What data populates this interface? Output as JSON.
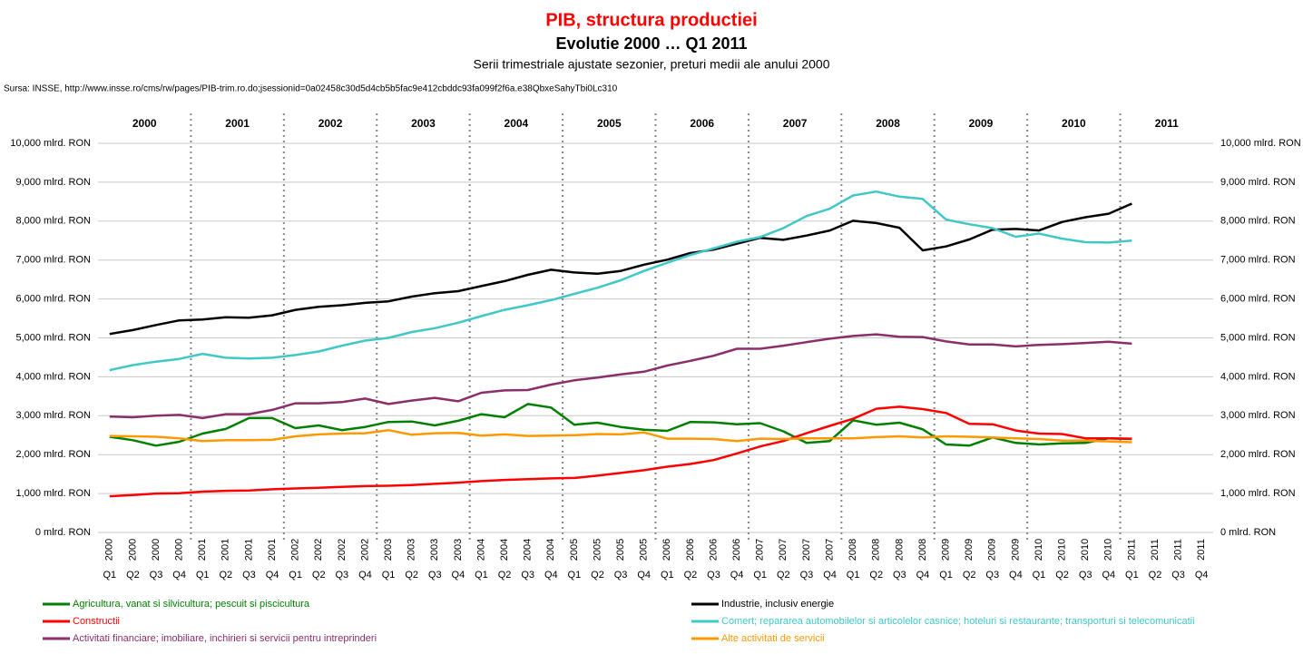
{
  "chart_data": {
    "type": "line",
    "title": "PIB, structura productiei",
    "subtitle": "Evolutie 2000 … Q1 2011",
    "subtitle2": "Serii trimestriale ajustate sezonier, preturi medii ale anului 2000",
    "source": "Sursa: INSSE, http://www.insse.ro/cms/rw/pages/PIB-trim.ro.do;jsessionid=0a02458c30d5d4cb5b5fac9e412cbddc93fa099f2f6a.e38QbxeSahyTbi0Lc310",
    "year_bands": [
      "2000",
      "2001",
      "2002",
      "2003",
      "2004",
      "2005",
      "2006",
      "2007",
      "2008",
      "2009",
      "2010",
      "2011"
    ],
    "categories": [
      {
        "year": "2000",
        "quarter": "Q1"
      },
      {
        "year": "2000",
        "quarter": "Q2"
      },
      {
        "year": "2000",
        "quarter": "Q3"
      },
      {
        "year": "2000",
        "quarter": "Q4"
      },
      {
        "year": "2001",
        "quarter": "Q1"
      },
      {
        "year": "2001",
        "quarter": "Q2"
      },
      {
        "year": "2001",
        "quarter": "Q3"
      },
      {
        "year": "2001",
        "quarter": "Q4"
      },
      {
        "year": "2002",
        "quarter": "Q1"
      },
      {
        "year": "2002",
        "quarter": "Q2"
      },
      {
        "year": "2002",
        "quarter": "Q3"
      },
      {
        "year": "2002",
        "quarter": "Q4"
      },
      {
        "year": "2003",
        "quarter": "Q1"
      },
      {
        "year": "2003",
        "quarter": "Q2"
      },
      {
        "year": "2003",
        "quarter": "Q3"
      },
      {
        "year": "2003",
        "quarter": "Q4"
      },
      {
        "year": "2004",
        "quarter": "Q1"
      },
      {
        "year": "2004",
        "quarter": "Q2"
      },
      {
        "year": "2004",
        "quarter": "Q3"
      },
      {
        "year": "2004",
        "quarter": "Q4"
      },
      {
        "year": "2005",
        "quarter": "Q1"
      },
      {
        "year": "2005",
        "quarter": "Q2"
      },
      {
        "year": "2005",
        "quarter": "Q3"
      },
      {
        "year": "2005",
        "quarter": "Q4"
      },
      {
        "year": "2006",
        "quarter": "Q1"
      },
      {
        "year": "2006",
        "quarter": "Q2"
      },
      {
        "year": "2006",
        "quarter": "Q3"
      },
      {
        "year": "2006",
        "quarter": "Q4"
      },
      {
        "year": "2007",
        "quarter": "Q1"
      },
      {
        "year": "2007",
        "quarter": "Q2"
      },
      {
        "year": "2007",
        "quarter": "Q3"
      },
      {
        "year": "2007",
        "quarter": "Q4"
      },
      {
        "year": "2008",
        "quarter": "Q1"
      },
      {
        "year": "2008",
        "quarter": "Q2"
      },
      {
        "year": "2008",
        "quarter": "Q3"
      },
      {
        "year": "2008",
        "quarter": "Q4"
      },
      {
        "year": "2009",
        "quarter": "Q1"
      },
      {
        "year": "2009",
        "quarter": "Q2"
      },
      {
        "year": "2009",
        "quarter": "Q3"
      },
      {
        "year": "2009",
        "quarter": "Q4"
      },
      {
        "year": "2010",
        "quarter": "Q1"
      },
      {
        "year": "2010",
        "quarter": "Q2"
      },
      {
        "year": "2010",
        "quarter": "Q3"
      },
      {
        "year": "2010",
        "quarter": "Q4"
      },
      {
        "year": "2011",
        "quarter": "Q1"
      },
      {
        "year": "2011",
        "quarter": "Q2"
      },
      {
        "year": "2011",
        "quarter": "Q3"
      },
      {
        "year": "2011",
        "quarter": "Q4"
      }
    ],
    "ylim": [
      0,
      10000
    ],
    "yticks": [
      {
        "value": 0,
        "label": "0 mlrd. RON"
      },
      {
        "value": 1000,
        "label": "1,000 mlrd. RON"
      },
      {
        "value": 2000,
        "label": "2,000 mlrd. RON"
      },
      {
        "value": 3000,
        "label": "3,000 mlrd. RON"
      },
      {
        "value": 4000,
        "label": "4,000 mlrd. RON"
      },
      {
        "value": 5000,
        "label": "5,000 mlrd. RON"
      },
      {
        "value": 6000,
        "label": "6,000 mlrd. RON"
      },
      {
        "value": 7000,
        "label": "7,000 mlrd. RON"
      },
      {
        "value": 8000,
        "label": "8,000 mlrd. RON"
      },
      {
        "value": 9000,
        "label": "9,000 mlrd. RON"
      },
      {
        "value": 10000,
        "label": "10,000 mlrd. RON"
      }
    ],
    "grid": true,
    "series": [
      {
        "name": "Agricultura, vanat si silvicultura; pescuit si piscicultura",
        "color": "#008000",
        "values": [
          2460,
          2370,
          2230,
          2330,
          2540,
          2660,
          2940,
          2940,
          2680,
          2750,
          2630,
          2710,
          2840,
          2850,
          2750,
          2870,
          3040,
          2960,
          3300,
          3210,
          2770,
          2820,
          2710,
          2640,
          2610,
          2840,
          2830,
          2780,
          2810,
          2600,
          2300,
          2350,
          2880,
          2770,
          2820,
          2650,
          2260,
          2230,
          2440,
          2300,
          2260,
          2290,
          2300,
          2420,
          2400,
          null,
          null,
          null
        ]
      },
      {
        "name": "Industrie, inclusiv energie",
        "color": "#000000",
        "values": [
          5100,
          5200,
          5330,
          5450,
          5470,
          5530,
          5520,
          5580,
          5720,
          5800,
          5840,
          5900,
          5940,
          6060,
          6150,
          6200,
          6330,
          6460,
          6620,
          6750,
          6680,
          6650,
          6720,
          6880,
          7010,
          7180,
          7270,
          7420,
          7570,
          7520,
          7630,
          7760,
          8010,
          7950,
          7830,
          7250,
          7350,
          7530,
          7780,
          7800,
          7760,
          7980,
          8100,
          8190,
          8450,
          null,
          null,
          null
        ]
      },
      {
        "name": "Constructii",
        "color": "#ff0000",
        "values": [
          930,
          960,
          1000,
          1010,
          1050,
          1070,
          1080,
          1110,
          1130,
          1150,
          1170,
          1190,
          1200,
          1220,
          1250,
          1280,
          1320,
          1350,
          1370,
          1390,
          1400,
          1460,
          1530,
          1600,
          1690,
          1760,
          1860,
          2030,
          2210,
          2350,
          2550,
          2740,
          2920,
          3180,
          3230,
          3170,
          3070,
          2790,
          2780,
          2620,
          2540,
          2530,
          2420,
          2420,
          2410,
          null,
          null,
          null
        ]
      },
      {
        "name": "Comert; repararea automobilelor si articolelor casnice; hoteluri si restaurante; transporturi si telecomunicatii",
        "color": "#40c8c8",
        "values": [
          4170,
          4300,
          4390,
          4460,
          4590,
          4490,
          4470,
          4490,
          4560,
          4650,
          4800,
          4930,
          5000,
          5150,
          5250,
          5390,
          5560,
          5720,
          5840,
          5970,
          6130,
          6290,
          6480,
          6720,
          6930,
          7130,
          7300,
          7470,
          7590,
          7820,
          8130,
          8320,
          8660,
          8760,
          8630,
          8570,
          8040,
          7920,
          7820,
          7600,
          7680,
          7550,
          7460,
          7450,
          7500,
          null,
          null,
          null
        ]
      },
      {
        "name": "Activitati financiare; imobiliare, inchirieri si servicii pentru intreprinderi",
        "color": "#8b2f6b",
        "values": [
          2980,
          2960,
          3000,
          3020,
          2940,
          3040,
          3040,
          3150,
          3320,
          3320,
          3350,
          3440,
          3300,
          3390,
          3460,
          3370,
          3590,
          3650,
          3660,
          3800,
          3910,
          3980,
          4060,
          4130,
          4290,
          4410,
          4540,
          4720,
          4720,
          4800,
          4890,
          4980,
          5050,
          5090,
          5030,
          5020,
          4910,
          4830,
          4830,
          4780,
          4820,
          4840,
          4870,
          4900,
          4850,
          null,
          null,
          null
        ]
      },
      {
        "name": "Alte activitati de servicii",
        "color": "#ff9900",
        "values": [
          2480,
          2470,
          2460,
          2420,
          2350,
          2370,
          2370,
          2380,
          2470,
          2520,
          2540,
          2550,
          2630,
          2510,
          2550,
          2560,
          2490,
          2520,
          2480,
          2490,
          2500,
          2530,
          2520,
          2570,
          2410,
          2410,
          2400,
          2350,
          2410,
          2400,
          2420,
          2420,
          2420,
          2450,
          2470,
          2440,
          2470,
          2460,
          2440,
          2420,
          2400,
          2360,
          2360,
          2340,
          2320,
          null,
          null,
          null
        ]
      }
    ]
  }
}
